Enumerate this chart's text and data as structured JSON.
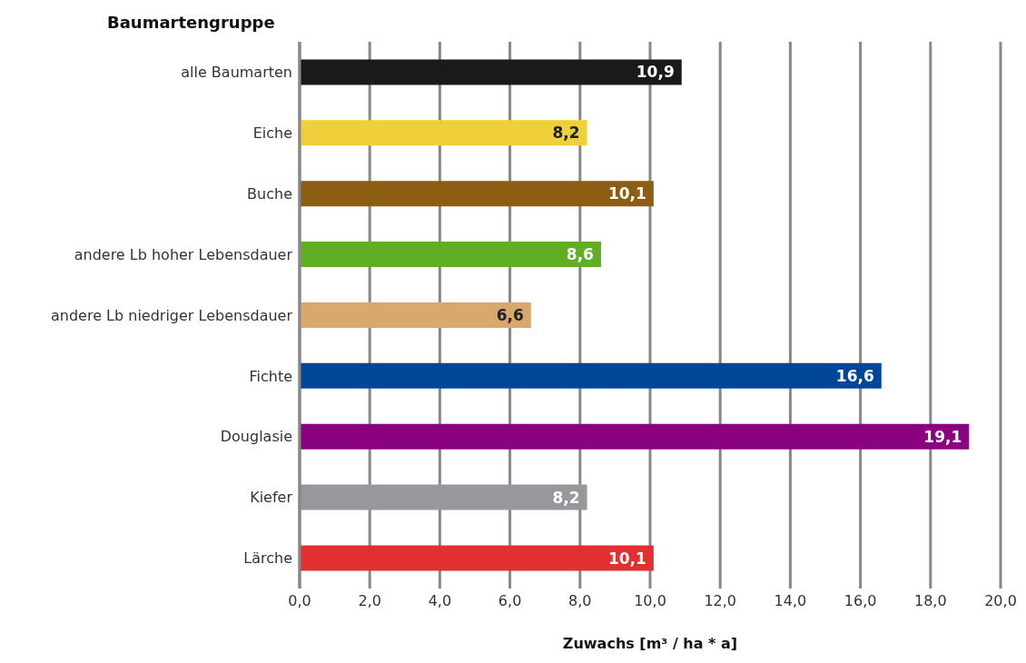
{
  "chart_data": {
    "type": "bar",
    "orientation": "horizontal",
    "ylabel": "Baumartengruppe",
    "xlabel": "Zuwachs [m³ / ha * a]",
    "categories": [
      "alle Baumarten",
      "Eiche",
      "Buche",
      "andere Lb hoher Lebensdauer",
      "andere Lb niedriger Lebensdauer",
      "Fichte",
      "Douglasie",
      "Kiefer",
      "Lärche"
    ],
    "values": [
      10.9,
      8.2,
      10.1,
      8.6,
      6.6,
      16.6,
      19.1,
      8.2,
      10.1
    ],
    "value_labels": [
      "10,9",
      "8,2",
      "10,1",
      "8,6",
      "6,6",
      "16,6",
      "19,1",
      "8,2",
      "10,1"
    ],
    "colors": [
      "#1a1a1a",
      "#f0d03a",
      "#8b5e14",
      "#5fae24",
      "#d9a86c",
      "#00479a",
      "#8b0080",
      "#98979c",
      "#e03030"
    ],
    "xlim": [
      0,
      20
    ],
    "xticks": [
      {
        "value": 0,
        "label": "0,0"
      },
      {
        "value": 2,
        "label": "2,0"
      },
      {
        "value": 4,
        "label": "4,0"
      },
      {
        "value": 6,
        "label": "6,0"
      },
      {
        "value": 8,
        "label": "8,0"
      },
      {
        "value": 10,
        "label": "10,0"
      },
      {
        "value": 12,
        "label": "12,0"
      },
      {
        "value": 14,
        "label": "14,0"
      },
      {
        "value": 16,
        "label": "16,0"
      },
      {
        "value": 18,
        "label": "18,0"
      },
      {
        "value": 20,
        "label": "20,0"
      }
    ],
    "grid": "x",
    "legend": false
  }
}
